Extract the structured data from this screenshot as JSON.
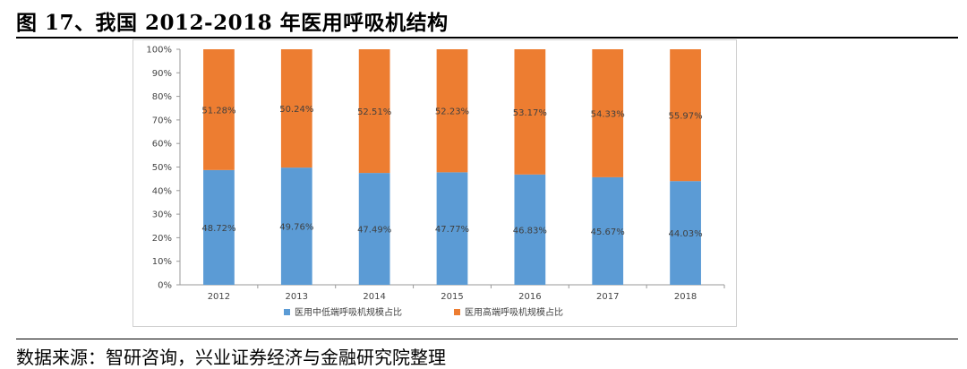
{
  "figure": {
    "title": "图 17、我国 2012-2018 年医用呼吸机结构",
    "source": "数据来源：智研咨询，兴业证券经济与金融研究院整理"
  },
  "chart_data": {
    "type": "bar",
    "stacked": true,
    "categories": [
      "2012",
      "2013",
      "2014",
      "2015",
      "2016",
      "2017",
      "2018"
    ],
    "series": [
      {
        "name": "医用中低端呼吸机规模占比",
        "color": "#5b9bd5",
        "values": [
          48.72,
          49.76,
          47.49,
          47.77,
          46.83,
          45.67,
          44.03
        ],
        "labels": [
          "48.72%",
          "49.76%",
          "47.49%",
          "47.77%",
          "46.83%",
          "45.67%",
          "44.03%"
        ]
      },
      {
        "name": "医用高端呼吸机规模占比",
        "color": "#ed7d31",
        "values": [
          51.28,
          50.24,
          52.51,
          52.23,
          53.17,
          54.33,
          55.97
        ],
        "labels": [
          "51.28%",
          "50.24%",
          "52.51%",
          "52.23%",
          "53.17%",
          "54.33%",
          "55.97%"
        ]
      }
    ],
    "yticks": [
      "0%",
      "10%",
      "20%",
      "30%",
      "40%",
      "50%",
      "60%",
      "70%",
      "80%",
      "90%",
      "100%"
    ],
    "ylim": [
      0,
      100
    ],
    "grid": false,
    "legend": "bottom"
  }
}
